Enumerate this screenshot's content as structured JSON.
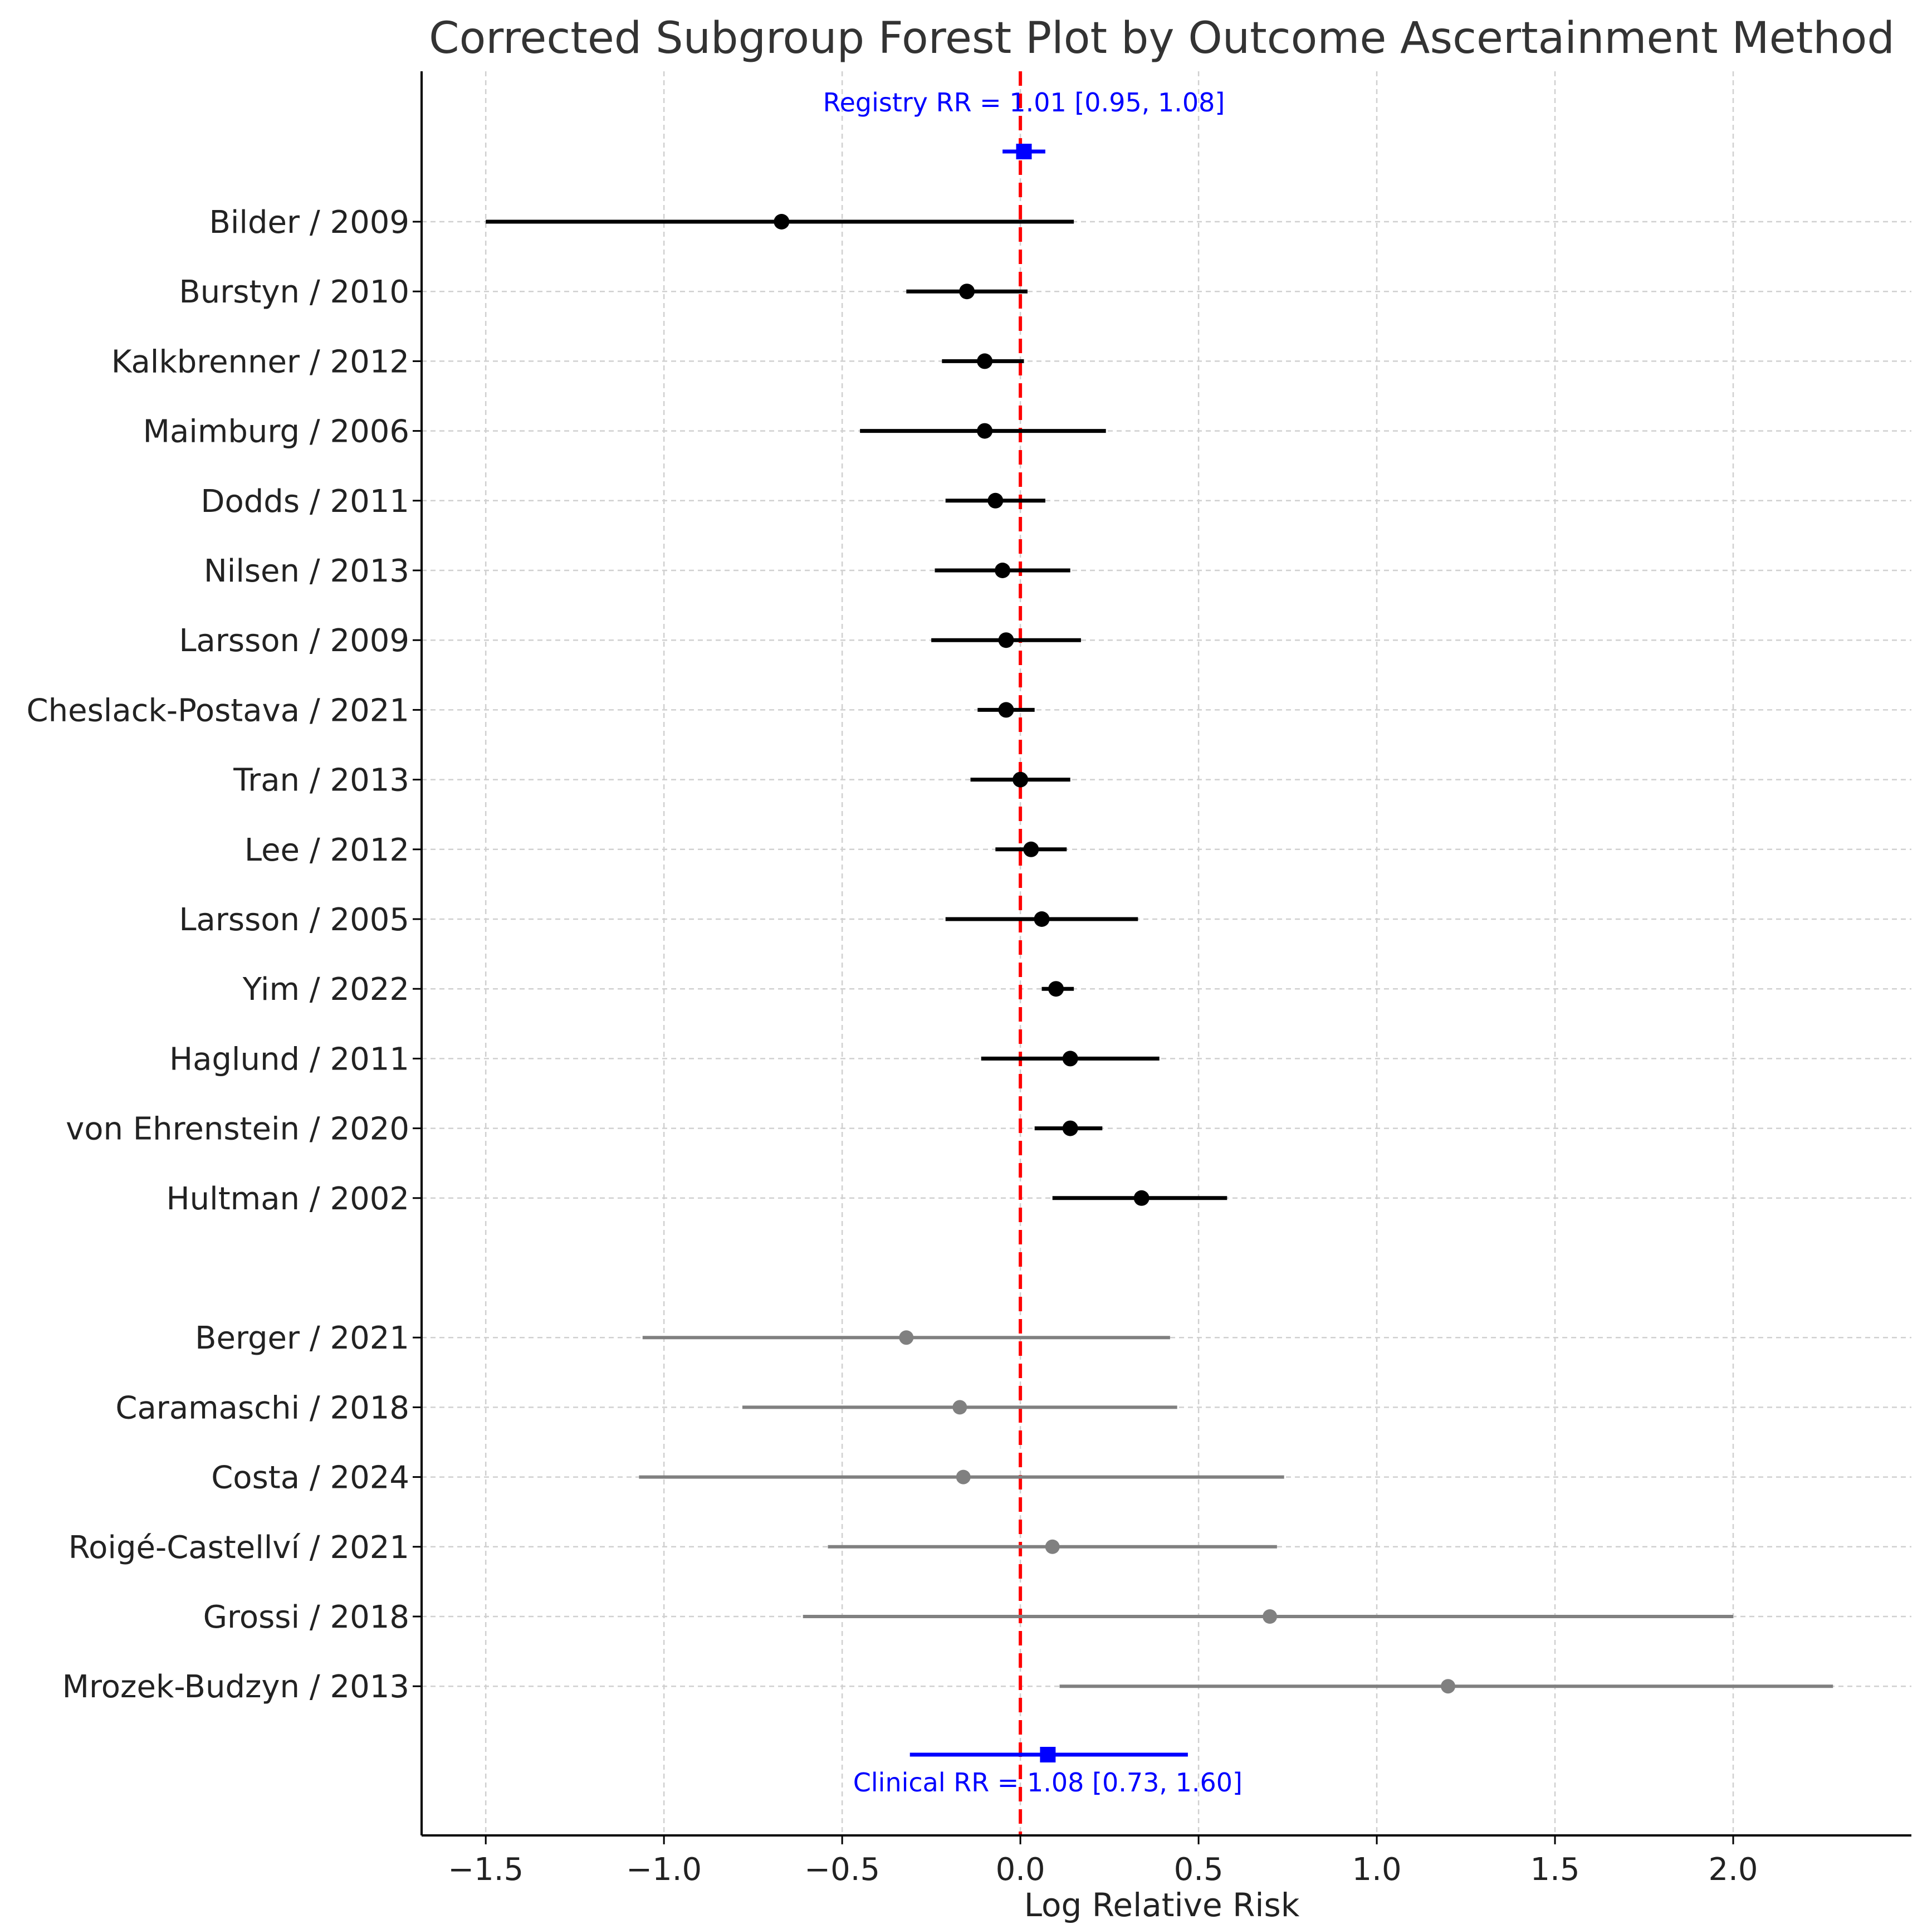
{
  "chart_data": {
    "type": "forest",
    "title": "Corrected Subgroup Forest Plot by Outcome Ascertainment Method",
    "xlabel": "Log Relative Risk",
    "ylabel": "",
    "xlim": [
      -1.68,
      2.5
    ],
    "xticks": [
      -1.5,
      -1.0,
      -0.5,
      0.0,
      0.5,
      1.0,
      1.5,
      2.0
    ],
    "xtick_labels": [
      "−1.5",
      "−1.0",
      "−0.5",
      "0.0",
      "0.5",
      "1.0",
      "1.5",
      "2.0"
    ],
    "grid": true,
    "reference_line": {
      "x": 0.0,
      "color": "#ff0000",
      "style": "dashed"
    },
    "colors": {
      "registry": "#000000",
      "clinical": "#808080",
      "pooled": "#0000ff",
      "axis": "#000000",
      "grid": "#d0d0d0"
    },
    "summary": [
      {
        "group": "registry",
        "label": "Registry RR = 1.01 [0.95, 1.08]",
        "estimate": 0.01,
        "lower": -0.05,
        "upper": 0.07
      },
      {
        "group": "clinical",
        "label": "Clinical RR = 1.08 [0.73, 1.60]",
        "estimate": 0.077,
        "lower": -0.31,
        "upper": 0.47
      }
    ],
    "series": [
      {
        "name": "Registry",
        "studies": [
          {
            "label": "Bilder / 2009",
            "estimate": -0.67,
            "lower": -1.5,
            "upper": 0.15
          },
          {
            "label": "Burstyn / 2010",
            "estimate": -0.15,
            "lower": -0.32,
            "upper": 0.02
          },
          {
            "label": "Kalkbrenner / 2012",
            "estimate": -0.1,
            "lower": -0.22,
            "upper": 0.01
          },
          {
            "label": "Maimburg / 2006",
            "estimate": -0.1,
            "lower": -0.45,
            "upper": 0.24
          },
          {
            "label": "Dodds / 2011",
            "estimate": -0.07,
            "lower": -0.21,
            "upper": 0.07
          },
          {
            "label": "Nilsen / 2013",
            "estimate": -0.05,
            "lower": -0.24,
            "upper": 0.14
          },
          {
            "label": "Larsson / 2009",
            "estimate": -0.04,
            "lower": -0.25,
            "upper": 0.17
          },
          {
            "label": "Cheslack-Postava / 2021",
            "estimate": -0.04,
            "lower": -0.12,
            "upper": 0.04
          },
          {
            "label": "Tran / 2013",
            "estimate": 0.0,
            "lower": -0.14,
            "upper": 0.14
          },
          {
            "label": "Lee / 2012",
            "estimate": 0.03,
            "lower": -0.07,
            "upper": 0.13
          },
          {
            "label": "Larsson / 2005",
            "estimate": 0.06,
            "lower": -0.21,
            "upper": 0.33
          },
          {
            "label": "Yim / 2022",
            "estimate": 0.1,
            "lower": 0.06,
            "upper": 0.15
          },
          {
            "label": "Haglund / 2011",
            "estimate": 0.14,
            "lower": -0.11,
            "upper": 0.39
          },
          {
            "label": "von Ehrenstein / 2020",
            "estimate": 0.14,
            "lower": 0.04,
            "upper": 0.23
          },
          {
            "label": "Hultman / 2002",
            "estimate": 0.34,
            "lower": 0.09,
            "upper": 0.58
          }
        ]
      },
      {
        "name": "Clinical",
        "studies": [
          {
            "label": "Berger / 2021",
            "estimate": -0.32,
            "lower": -1.06,
            "upper": 0.42
          },
          {
            "label": "Caramaschi / 2018",
            "estimate": -0.17,
            "lower": -0.78,
            "upper": 0.44
          },
          {
            "label": "Costa / 2024",
            "estimate": -0.16,
            "lower": -1.07,
            "upper": 0.74
          },
          {
            "label": "Roigé-Castellví / 2021",
            "estimate": 0.09,
            "lower": -0.54,
            "upper": 0.72
          },
          {
            "label": "Grossi / 2018",
            "estimate": 0.7,
            "lower": -0.61,
            "upper": 2.0
          },
          {
            "label": "Mrozek-Budzyn / 2013",
            "estimate": 1.2,
            "lower": 0.11,
            "upper": 2.28
          }
        ]
      }
    ]
  }
}
